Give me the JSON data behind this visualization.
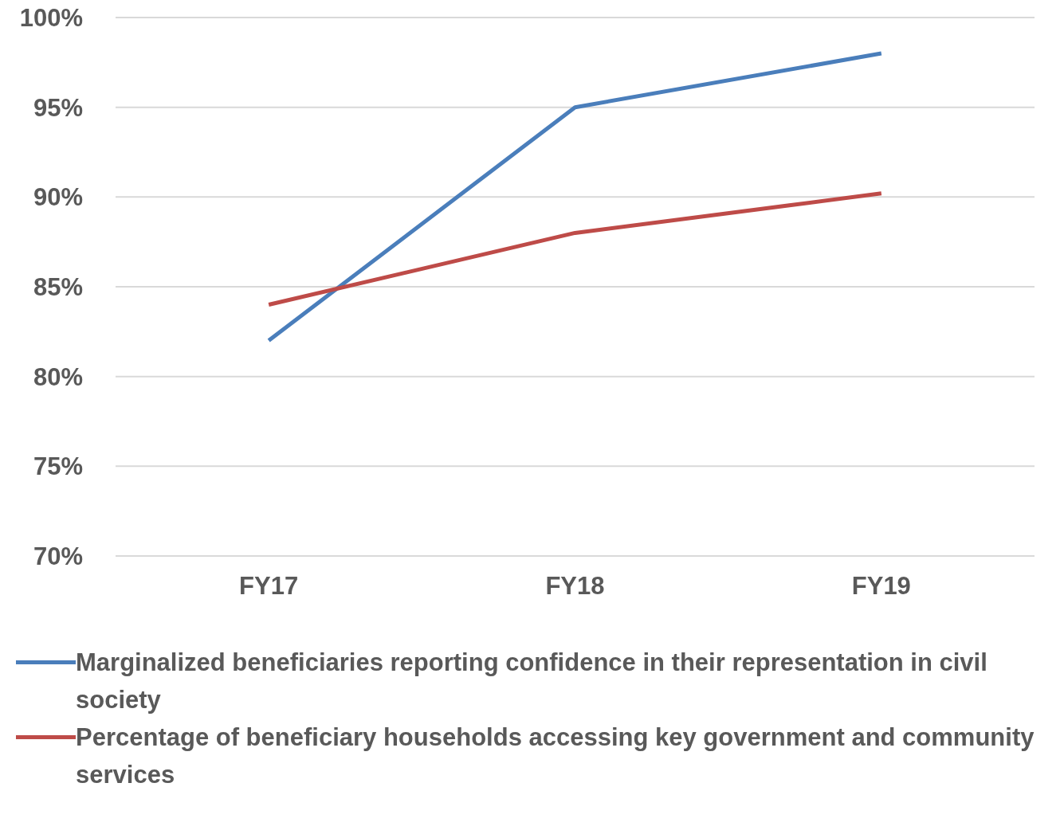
{
  "chart_data": {
    "type": "line",
    "categories": [
      "FY17",
      "FY18",
      "FY19"
    ],
    "series": [
      {
        "name": "Marginalized beneficiaries reporting confidence in their representation in civil society",
        "color": "#4a7ebb",
        "values": [
          82,
          95,
          98
        ]
      },
      {
        "name": "Percentage of beneficiary households accessing key government and community services",
        "color": "#be4b48",
        "values": [
          84,
          88,
          90.2
        ]
      }
    ],
    "ylim": [
      70,
      100
    ],
    "yticks": [
      {
        "value": 70,
        "label": "70%"
      },
      {
        "value": 75,
        "label": "75%"
      },
      {
        "value": 80,
        "label": "80%"
      },
      {
        "value": 85,
        "label": "85%"
      },
      {
        "value": 90,
        "label": "90%"
      },
      {
        "value": 95,
        "label": "95%"
      },
      {
        "value": 100,
        "label": "100%"
      }
    ],
    "grid": "y",
    "legend": "bottom",
    "marker": "none",
    "line_style": "solid"
  }
}
